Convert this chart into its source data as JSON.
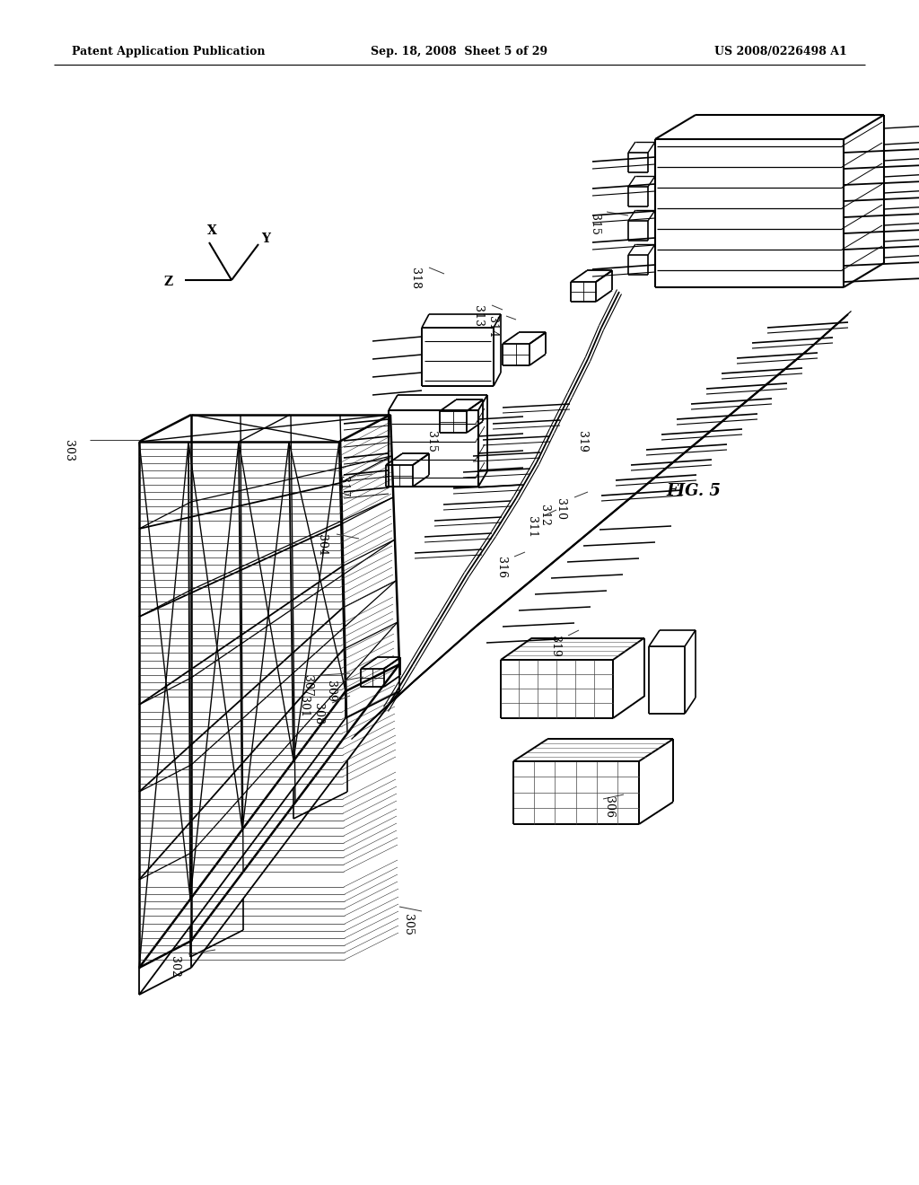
{
  "header_left": "Patent Application Publication",
  "header_center": "Sep. 18, 2008  Sheet 5 of 29",
  "header_right": "US 2008/0226498 A1",
  "figure_label": "FIG. 5",
  "bg_color": "#ffffff",
  "line_color": "#000000"
}
